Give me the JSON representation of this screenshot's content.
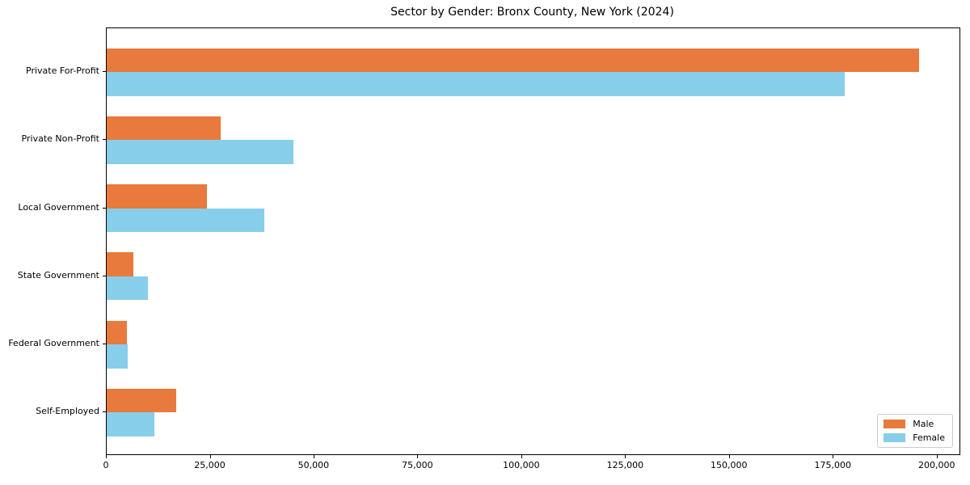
{
  "title": "Sector by Gender: Bronx County, New York (2024)",
  "colors": {
    "male": "#e87a3d",
    "female": "#87ceeb",
    "spine": "#000000",
    "legend_border": "#cccccc",
    "text": "#000000",
    "background": "#ffffff"
  },
  "chart_data": {
    "type": "bar",
    "orientation": "horizontal",
    "title": "Sector by Gender: Bronx County, New York (2024)",
    "xlabel": "",
    "ylabel": "",
    "categories": [
      "Private For-Profit",
      "Private Non-Profit",
      "Local Government",
      "State Government",
      "Federal Government",
      "Self-Employed"
    ],
    "series": [
      {
        "name": "Male",
        "color": "#e87a3d",
        "values": [
          195500,
          27400,
          24100,
          6400,
          4800,
          16700
        ]
      },
      {
        "name": "Female",
        "color": "#87ceeb",
        "values": [
          177700,
          45000,
          38000,
          10000,
          5000,
          11500
        ]
      }
    ],
    "xlim": [
      0,
      205300
    ],
    "xticks": [
      0,
      25000,
      50000,
      75000,
      100000,
      125000,
      150000,
      175000,
      200000
    ],
    "xtick_labels": [
      "0",
      "25,000",
      "50,000",
      "75,000",
      "100,000",
      "125,000",
      "150,000",
      "175,000",
      "200,000"
    ],
    "grid": false,
    "legend_position": "lower right",
    "legend_items": [
      {
        "label": "Male",
        "color": "#e87a3d"
      },
      {
        "label": "Female",
        "color": "#87ceeb"
      }
    ]
  }
}
